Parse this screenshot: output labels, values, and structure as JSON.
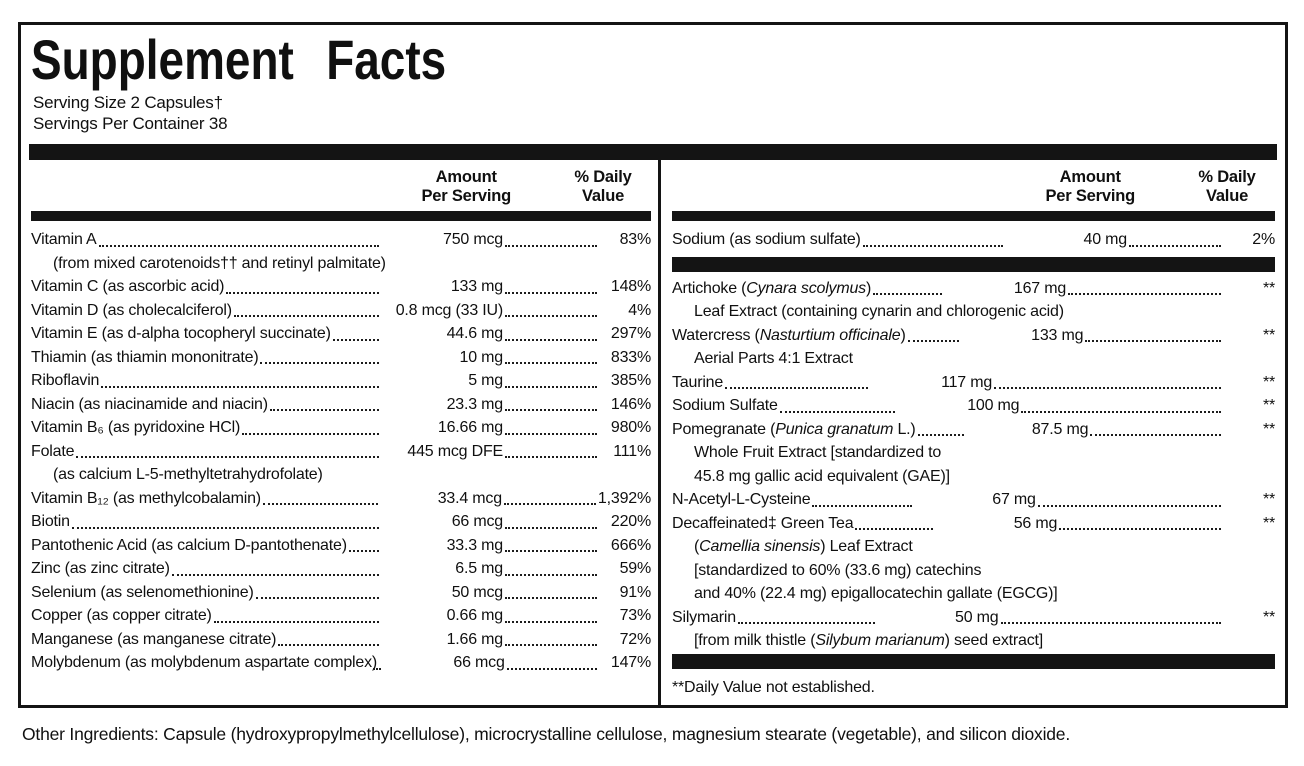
{
  "label": {
    "title": "Supplement Facts",
    "serving_size": "Serving Size 2 Capsules†",
    "servings_per_container": "Servings Per Container 38",
    "header": {
      "amount_line1": "Amount",
      "amount_line2": "Per Serving",
      "dv_line1": "% Daily",
      "dv_line2": "Value"
    },
    "left_rows": [
      {
        "t": "row",
        "pre": "Vitamin A",
        "amt": "750 mcg",
        "dv": "83%"
      },
      {
        "t": "sub",
        "pre": "(from mixed carotenoids†† and retinyl palmitate)"
      },
      {
        "t": "row",
        "pre": "Vitamin C (as ascorbic acid)",
        "amt": "133 mg",
        "dv": "148%"
      },
      {
        "t": "row",
        "pre": "Vitamin D (as cholecalciferol)",
        "amt": "0.8 mcg (33 IU)",
        "dv": "4%"
      },
      {
        "t": "row",
        "pre": "Vitamin E (as d-alpha tocopheryl succinate)",
        "amt": "44.6 mg",
        "dv": "297%"
      },
      {
        "t": "row",
        "pre": "Thiamin (as thiamin mononitrate)",
        "amt": "10 mg",
        "dv": "833%"
      },
      {
        "t": "row",
        "pre": "Riboflavin ",
        "amt": "5 mg",
        "dv": "385%"
      },
      {
        "t": "row",
        "pre": "Niacin (as niacinamide and niacin)",
        "amt": "23.3 mg",
        "dv": "146%"
      },
      {
        "t": "row",
        "pre": "Vitamin B₆ (as pyridoxine HCl)",
        "amt": "16.66 mg",
        "dv": "980%"
      },
      {
        "t": "row",
        "pre": "Folate ",
        "amt": "445 mcg DFE",
        "dv": "111%"
      },
      {
        "t": "sub",
        "pre": "(as calcium L-5-methyltetrahydrofolate)"
      },
      {
        "t": "row",
        "pre": "Vitamin B₁₂ (as methylcobalamin)",
        "amt": "33.4 mcg",
        "dv": "1,392%"
      },
      {
        "t": "row",
        "pre": "Biotin",
        "amt": "66 mcg",
        "dv": "220%"
      },
      {
        "t": "row",
        "pre": "Pantothenic Acid (as calcium D-pantothenate)",
        "amt": "33.3 mg",
        "dv": "666%"
      },
      {
        "t": "row",
        "pre": "Zinc (as zinc citrate)",
        "amt": "6.5 mg",
        "dv": "59%"
      },
      {
        "t": "row",
        "pre": "Selenium (as selenomethionine)",
        "amt": "50 mcg",
        "dv": "91%"
      },
      {
        "t": "row",
        "pre": "Copper (as copper citrate)",
        "amt": "0.66 mg",
        "dv": "73%"
      },
      {
        "t": "row",
        "pre": "Manganese (as manganese citrate) ",
        "amt": "1.66 mg",
        "dv": "72%"
      },
      {
        "t": "row",
        "pre": "Molybdenum (as molybdenum aspartate complex)",
        "amt": "66 mcg",
        "dv": "147%"
      }
    ],
    "right_rows": [
      {
        "t": "row",
        "pre": "Sodium (as sodium sulfate)",
        "amt": "40 mg",
        "dv": "2%"
      },
      {
        "t": "bar"
      },
      {
        "t": "row",
        "pre": "Artichoke (",
        "it": "Cynara scolymus",
        "post": ") ",
        "amt": "167 mg",
        "dv": "**"
      },
      {
        "t": "sub",
        "pre": "Leaf Extract (containing cynarin and chlorogenic acid)"
      },
      {
        "t": "row",
        "pre": "Watercress (",
        "it": "Nasturtium officinale",
        "post": ") ",
        "amt": "133 mg",
        "dv": "**"
      },
      {
        "t": "sub",
        "pre": "Aerial Parts 4:1 Extract"
      },
      {
        "t": "row",
        "pre": "Taurine",
        "amt": "117 mg",
        "dv": "**"
      },
      {
        "t": "row",
        "pre": "Sodium Sulfate",
        "amt": "100 mg",
        "dv": "**"
      },
      {
        "t": "row",
        "pre": "Pomegranate (",
        "it": "Punica granatum",
        "post": " L.) ",
        "amt": "87.5 mg",
        "dv": "**"
      },
      {
        "t": "sub",
        "pre": "Whole Fruit Extract [standardized to"
      },
      {
        "t": "sub",
        "pre": "45.8 mg gallic acid equivalent (GAE)]"
      },
      {
        "t": "row",
        "pre": "N-Acetyl-L-Cysteine ",
        "amt": "67 mg",
        "dv": "**"
      },
      {
        "t": "row",
        "pre": "Decaffeinated‡ Green Tea",
        "amt": "56 mg",
        "dv": "**"
      },
      {
        "t": "sub",
        "pre": "(",
        "it": "Camellia sinensis",
        "post": ") Leaf Extract"
      },
      {
        "t": "sub",
        "pre": "[standardized to 60% (33.6 mg) catechins"
      },
      {
        "t": "sub",
        "pre": "and 40% (22.4 mg) epigallocatechin gallate (EGCG)]"
      },
      {
        "t": "row",
        "pre": "Silymarin",
        "amt": "50 mg",
        "dv": "**"
      },
      {
        "t": "sub",
        "pre": "[from milk thistle (",
        "it": "Silybum marianum",
        "post": ") seed extract]"
      },
      {
        "t": "bar"
      },
      {
        "t": "note",
        "pre": "**Daily Value not established."
      }
    ],
    "other_ingredients": "Other Ingredients: Capsule (hydroxypropylmethylcellulose), microcrystalline cellulose, magnesium stearate (vegetable), and silicon dioxide."
  },
  "colors": {
    "ink": "#141414",
    "paper": "#ffffff"
  }
}
